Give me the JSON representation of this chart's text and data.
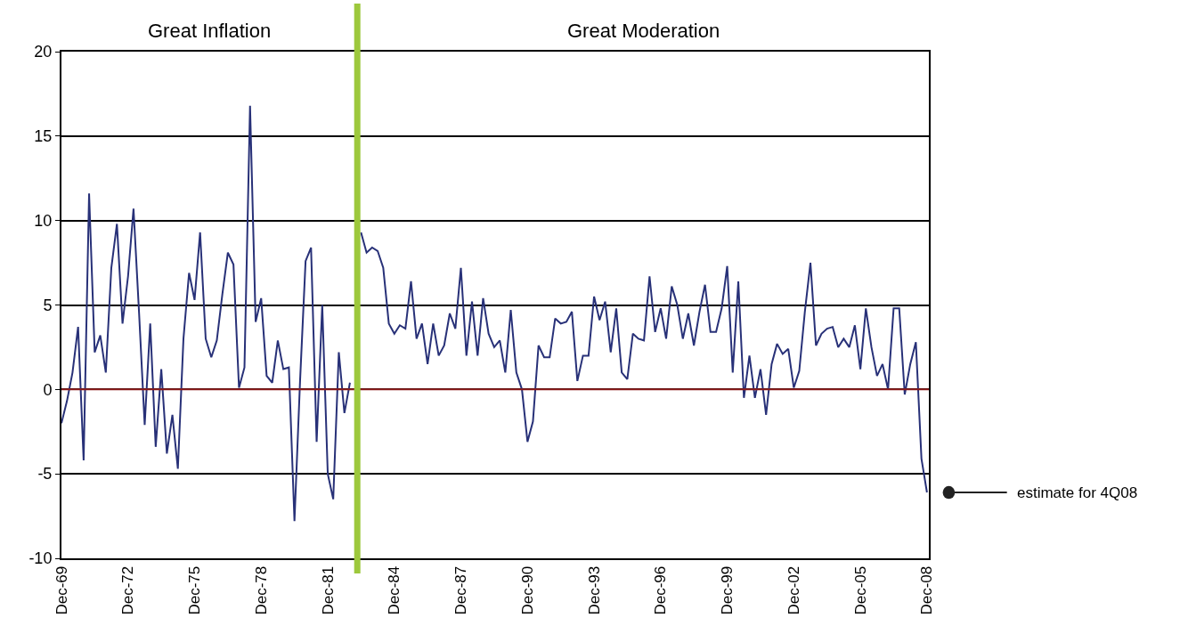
{
  "chart_data": {
    "type": "line",
    "x": [
      "1969-12",
      "1970-03",
      "1970-06",
      "1970-09",
      "1970-12",
      "1971-03",
      "1971-06",
      "1971-09",
      "1971-12",
      "1972-03",
      "1972-06",
      "1972-09",
      "1972-12",
      "1973-03",
      "1973-06",
      "1973-09",
      "1973-12",
      "1974-03",
      "1974-06",
      "1974-09",
      "1974-12",
      "1975-03",
      "1975-06",
      "1975-09",
      "1975-12",
      "1976-03",
      "1976-06",
      "1976-09",
      "1976-12",
      "1977-03",
      "1977-06",
      "1977-09",
      "1977-12",
      "1978-03",
      "1978-06",
      "1978-09",
      "1978-12",
      "1979-03",
      "1979-06",
      "1979-09",
      "1979-12",
      "1980-03",
      "1980-06",
      "1980-09",
      "1980-12",
      "1981-03",
      "1981-06",
      "1981-09",
      "1981-12",
      "1982-03",
      "1982-06",
      "1982-09",
      "1982-12",
      "1983-03",
      "1983-06",
      "1983-09",
      "1983-12",
      "1984-03",
      "1984-06",
      "1984-09",
      "1984-12",
      "1985-03",
      "1985-06",
      "1985-09",
      "1985-12",
      "1986-03",
      "1986-06",
      "1986-09",
      "1986-12",
      "1987-03",
      "1987-06",
      "1987-09",
      "1987-12",
      "1988-03",
      "1988-06",
      "1988-09",
      "1988-12",
      "1989-03",
      "1989-06",
      "1989-09",
      "1989-12",
      "1990-03",
      "1990-06",
      "1990-09",
      "1990-12",
      "1991-03",
      "1991-06",
      "1991-09",
      "1991-12",
      "1992-03",
      "1992-06",
      "1992-09",
      "1992-12",
      "1993-03",
      "1993-06",
      "1993-09",
      "1993-12",
      "1994-03",
      "1994-06",
      "1994-09",
      "1994-12",
      "1995-03",
      "1995-06",
      "1995-09",
      "1995-12",
      "1996-03",
      "1996-06",
      "1996-09",
      "1996-12",
      "1997-03",
      "1997-06",
      "1997-09",
      "1997-12",
      "1998-03",
      "1998-06",
      "1998-09",
      "1998-12",
      "1999-03",
      "1999-06",
      "1999-09",
      "1999-12",
      "2000-03",
      "2000-06",
      "2000-09",
      "2000-12",
      "2001-03",
      "2001-06",
      "2001-09",
      "2001-12",
      "2002-03",
      "2002-06",
      "2002-09",
      "2002-12",
      "2003-03",
      "2003-06",
      "2003-09",
      "2003-12",
      "2004-03",
      "2004-06",
      "2004-09",
      "2004-12",
      "2005-03",
      "2005-06",
      "2005-09",
      "2005-12",
      "2006-03",
      "2006-06",
      "2006-09",
      "2006-12",
      "2007-03",
      "2007-06",
      "2007-09",
      "2007-12",
      "2008-03",
      "2008-06",
      "2008-09",
      "2008-12"
    ],
    "series": [
      {
        "color": "#283178",
        "values": [
          -2.0,
          -0.7,
          1.0,
          3.7,
          -4.2,
          11.6,
          2.2,
          3.2,
          1.0,
          7.2,
          9.8,
          3.9,
          6.7,
          10.7,
          4.5,
          -2.1,
          3.9,
          -3.4,
          1.2,
          -3.8,
          -1.5,
          -4.7,
          3.0,
          6.9,
          5.3,
          9.3,
          3.0,
          1.9,
          2.9,
          5.6,
          8.1,
          7.4,
          0.1,
          1.3,
          16.8,
          4.0,
          5.4,
          0.8,
          0.4,
          2.9,
          1.2,
          1.3,
          -7.8,
          0.5,
          7.6,
          8.4,
          -3.1,
          5.0,
          -5.0,
          -6.5,
          2.2,
          -1.4,
          0.4,
          null,
          9.3,
          8.1,
          8.4,
          8.2,
          7.2,
          3.9,
          3.3,
          3.8,
          3.6,
          6.4,
          3.0,
          3.9,
          1.5,
          3.9,
          2.0,
          2.6,
          4.5,
          3.6,
          7.2,
          2.0,
          5.2,
          2.0,
          5.4,
          3.3,
          2.5,
          2.9,
          1.0,
          4.7,
          1.0,
          0.0,
          -3.1,
          -1.9,
          2.6,
          1.9,
          1.9,
          4.2,
          3.9,
          4.0,
          4.6,
          0.5,
          2.0,
          2.0,
          5.5,
          4.1,
          5.2,
          2.2,
          4.8,
          1.0,
          0.6,
          3.3,
          3.0,
          2.9,
          6.7,
          3.4,
          4.8,
          3.0,
          6.1,
          5.0,
          3.0,
          4.5,
          2.6,
          4.6,
          6.2,
          3.4,
          3.4,
          4.8,
          7.3,
          1.0,
          6.4,
          -0.5,
          2.0,
          -0.5,
          1.2,
          -1.5,
          1.5,
          2.7,
          2.1,
          2.4,
          0.1,
          1.1,
          4.6,
          7.5,
          2.6,
          3.3,
          3.6,
          3.7,
          2.5,
          3.0,
          2.5,
          3.8,
          1.2,
          4.8,
          2.5,
          0.8,
          1.5,
          0.0,
          4.8,
          4.8,
          -0.3,
          1.5,
          2.8,
          -4.1,
          -6.1
        ]
      }
    ],
    "xlim": [
      "1969-12",
      "2009-01"
    ],
    "xticks": [
      {
        "value": "1969-12",
        "label": "Dec-69"
      },
      {
        "value": "1972-12",
        "label": "Dec-72"
      },
      {
        "value": "1975-12",
        "label": "Dec-75"
      },
      {
        "value": "1978-12",
        "label": "Dec-78"
      },
      {
        "value": "1981-12",
        "label": "Dec-81"
      },
      {
        "value": "1984-12",
        "label": "Dec-84"
      },
      {
        "value": "1987-12",
        "label": "Dec-87"
      },
      {
        "value": "1990-12",
        "label": "Dec-90"
      },
      {
        "value": "1993-12",
        "label": "Dec-93"
      },
      {
        "value": "1996-12",
        "label": "Dec-96"
      },
      {
        "value": "1999-12",
        "label": "Dec-99"
      },
      {
        "value": "2002-12",
        "label": "Dec-02"
      },
      {
        "value": "2005-12",
        "label": "Dec-05"
      },
      {
        "value": "2008-12",
        "label": "Dec-08"
      }
    ],
    "ylim": [
      -10,
      20
    ],
    "yticks": [
      -10,
      -5,
      0,
      5,
      10,
      15,
      20
    ],
    "grid": "y",
    "marker": "none",
    "line_style": "solid",
    "ref_lines": [
      {
        "axis": "y",
        "value": 0,
        "color": "#8b1a1a"
      },
      {
        "axis": "x",
        "value": "1983-04",
        "color": "#9dc83c"
      }
    ],
    "annotations": [
      "Great Inflation",
      "Great Moderation",
      "estimate for 4Q08"
    ]
  }
}
